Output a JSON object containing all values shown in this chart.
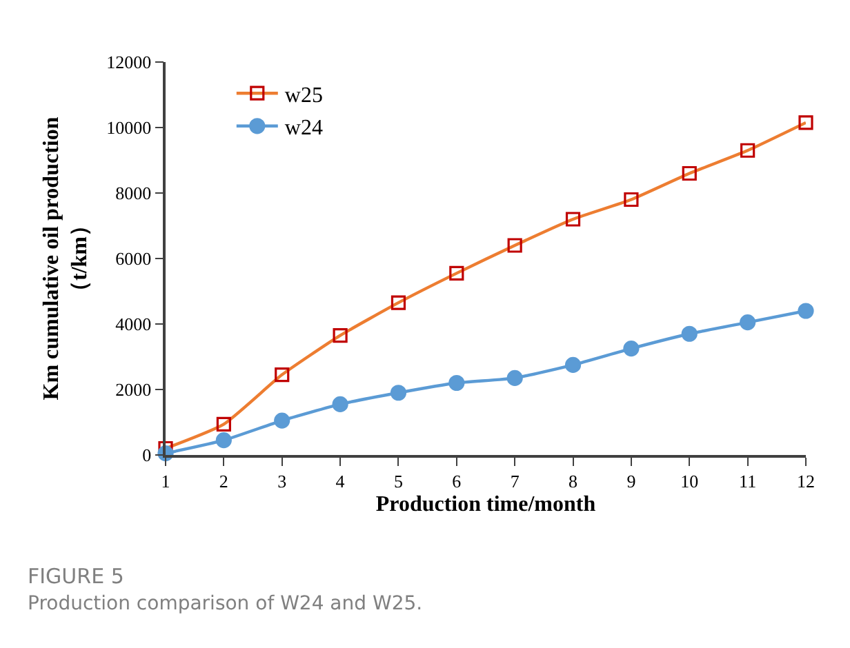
{
  "chart_data": {
    "type": "line",
    "xlabel": "Production time/month",
    "ylabel": "Km cumulative oil production\n（t/km）",
    "x": [
      1,
      2,
      3,
      4,
      5,
      6,
      7,
      8,
      9,
      10,
      11,
      12
    ],
    "series": [
      {
        "name": "w25",
        "color": "#ed7d31",
        "marker": "square",
        "values": [
          200,
          940,
          2450,
          3650,
          4650,
          5550,
          6400,
          7200,
          7800,
          8600,
          9300,
          10150
        ]
      },
      {
        "name": "w24",
        "color": "#5b9bd5",
        "marker": "circle",
        "values": [
          50,
          450,
          1050,
          1550,
          1900,
          2200,
          2350,
          2750,
          3250,
          3700,
          4050,
          4400
        ]
      }
    ],
    "xlim": [
      1,
      12
    ],
    "xticks": [
      1,
      2,
      3,
      4,
      5,
      6,
      7,
      8,
      9,
      10,
      11,
      12
    ],
    "ylim": [
      0,
      12000
    ],
    "yticks": [
      0,
      2000,
      4000,
      6000,
      8000,
      10000,
      12000
    ],
    "legend": "top left",
    "line_style": "solid",
    "annotations": [
      "FIGURE 5",
      "Production comparison of W24 and W25."
    ]
  }
}
